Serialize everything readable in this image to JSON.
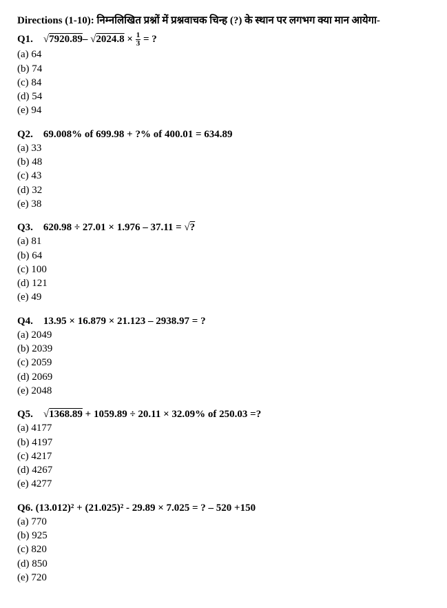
{
  "directions": "Directions (1-10): निम्नलिखित प्रश्नों में प्रश्नवाचक चिन्ह (?) के स्थान पर लगभग क्या मान आयेगा-",
  "q1": {
    "num": "Q1.",
    "expr_pre": "√",
    "rad1": "7920.89",
    "mid": "– √",
    "rad2": "2024.8",
    "post": " × ",
    "frac_n": "1",
    "frac_d": "3",
    "tail": " = ?",
    "opts": {
      "a": "(a) 64",
      "b": "(b) 74",
      "c": "(c) 84",
      "d": "(d) 54",
      "e": "(e) 94"
    }
  },
  "q2": {
    "num": "Q2.",
    "expr": "69.008% of 699.98 + ?% of 400.01 = 634.89",
    "opts": {
      "a": "(a) 33",
      "b": "(b) 48",
      "c": "(c) 43",
      "d": "(d) 32",
      "e": "(e) 38"
    }
  },
  "q3": {
    "num": "Q3.",
    "expr_pre": "620.98 ÷ 27.01 × 1.976 – 37.11 = √",
    "rad": "?",
    "opts": {
      "a": "(a) 81",
      "b": "(b) 64",
      "c": "(c) 100",
      "d": "(d) 121",
      "e": "(e) 49"
    }
  },
  "q4": {
    "num": "Q4.",
    "expr": "13.95 × 16.879 × 21.123 – 2938.97 = ?",
    "opts": {
      "a": "(a) 2049",
      "b": "(b) 2039",
      "c": "(c) 2059",
      "d": "(d) 2069",
      "e": "(e) 2048"
    }
  },
  "q5": {
    "num": "Q5.",
    "expr_pre": "√",
    "rad": "1368.89",
    "post": " + 1059.89 ÷ 20.11 × 32.09% of 250.03 =?",
    "opts": {
      "a": "(a) 4177",
      "b": "(b) 4197",
      "c": "(c) 4217",
      "d": "(d) 4267",
      "e": "(e) 4277"
    }
  },
  "q6": {
    "num": "Q6.",
    "expr": "(13.012)² + (21.025)² - 29.89 × 7.025 = ? – 520 +150",
    "opts": {
      "a": "(a) 770",
      "b": "(b) 925",
      "c": "(c) 820",
      "d": "(d) 850",
      "e": "(e) 720"
    }
  }
}
